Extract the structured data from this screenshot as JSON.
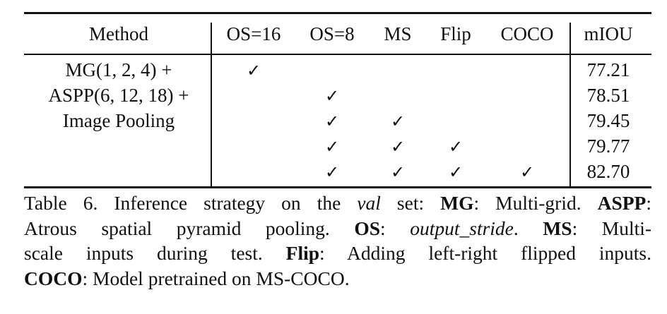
{
  "table": {
    "headers": {
      "method": "Method",
      "os16": "OS=16",
      "os8": "OS=8",
      "ms": "MS",
      "flip": "Flip",
      "coco": "COCO",
      "miou": "mIOU"
    },
    "method_lines": [
      "MG(1, 2, 4) +",
      "ASPP(6, 12, 18) +",
      "Image Pooling"
    ],
    "check_mark": "✓",
    "rows": [
      {
        "os16": true,
        "os8": false,
        "ms": false,
        "flip": false,
        "coco": false,
        "miou": "77.21"
      },
      {
        "os16": false,
        "os8": true,
        "ms": false,
        "flip": false,
        "coco": false,
        "miou": "78.51"
      },
      {
        "os16": false,
        "os8": true,
        "ms": true,
        "flip": false,
        "coco": false,
        "miou": "79.45"
      },
      {
        "os16": false,
        "os8": true,
        "ms": true,
        "flip": true,
        "coco": false,
        "miou": "79.77"
      },
      {
        "os16": false,
        "os8": true,
        "ms": true,
        "flip": true,
        "coco": true,
        "miou": "82.70"
      }
    ]
  },
  "caption": {
    "prefix": "Table 6. Inference strategy on the ",
    "val": "val",
    "set_text": " set: ",
    "mg_term": "MG",
    "mg_def": ": Multi-grid. ",
    "aspp_term": "ASPP",
    "aspp_def_a": ":",
    "aspp_def_b": "Atrous spatial pyramid pooling. ",
    "os_term": "OS",
    "os_sep": ": ",
    "os_def": "output_stride",
    "os_end": ". ",
    "ms_term": "MS",
    "ms_def_a": ": Multi-",
    "ms_def_b": "scale inputs during test. ",
    "flip_term": "Flip",
    "flip_def": ": Adding left-right flipped inputs.",
    "coco_term": "COCO",
    "coco_def": ": Model pretrained on MS-COCO."
  }
}
